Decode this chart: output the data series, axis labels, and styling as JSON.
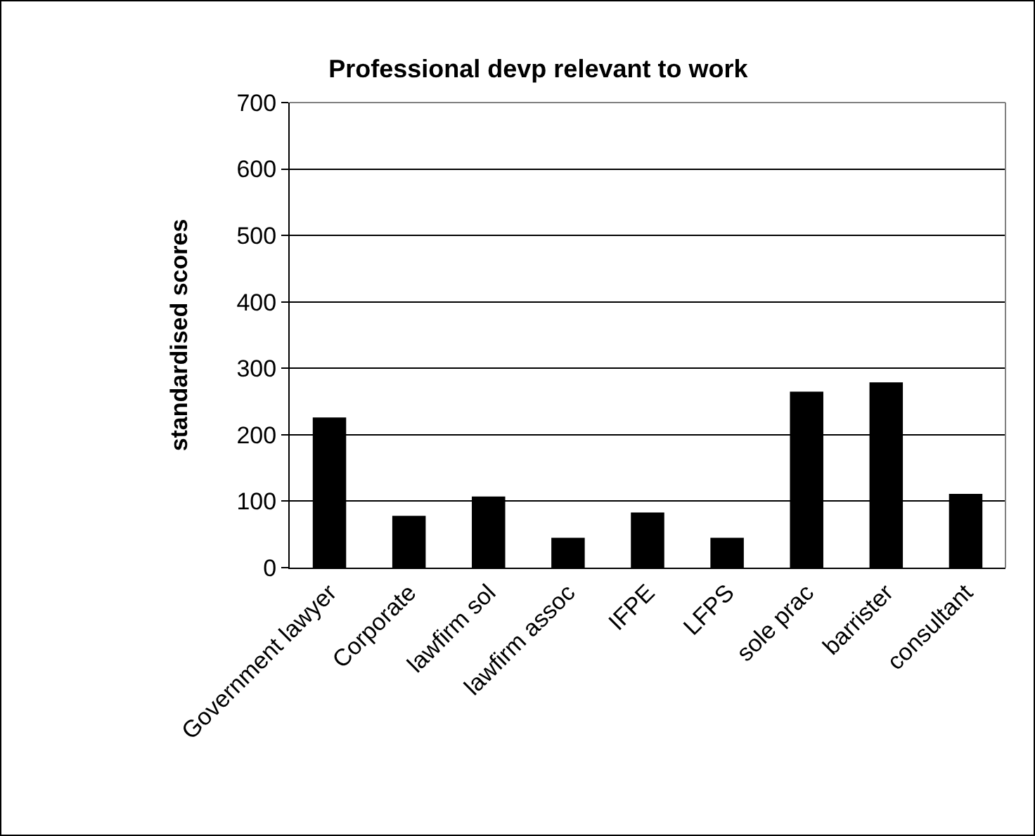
{
  "chart_data": {
    "type": "bar",
    "title": "Professional devp relevant to work",
    "ylabel": "standardised scores",
    "categories": [
      "Government lawyer",
      "Corporate",
      "lawfirm sol",
      "lawfirm assoc",
      "IFPE",
      "LFPS",
      "sole prac",
      "barrister",
      "consultant"
    ],
    "values": [
      226,
      78,
      107,
      45,
      83,
      45,
      265,
      279,
      111
    ],
    "color": "#000000",
    "ylim": [
      0,
      700
    ],
    "yticks": [
      0,
      100,
      200,
      300,
      400,
      500,
      600,
      700
    ],
    "grid": "y",
    "legend": false
  }
}
